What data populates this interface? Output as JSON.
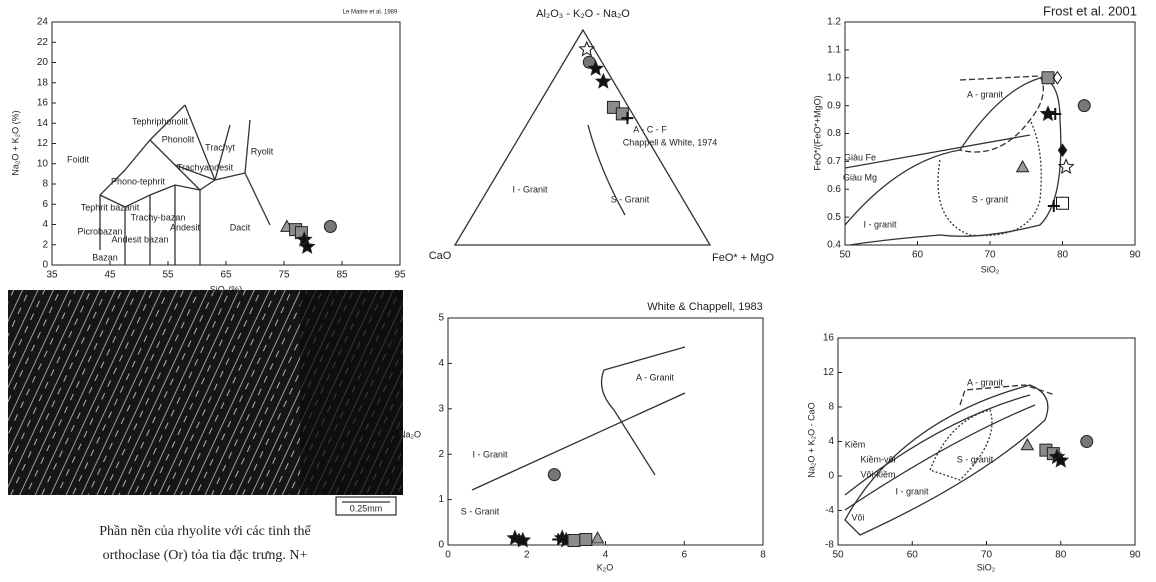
{
  "chart_data": [
    {
      "type": "scatter",
      "source": "Le Maitre et al. 1989",
      "x_label": "SiO₂(%)",
      "y_label": "Na₂O + K₂O (%)",
      "xlim": [
        35,
        95
      ],
      "xticks": [
        35,
        45,
        55,
        65,
        75,
        85,
        95
      ],
      "ylim": [
        0,
        24
      ],
      "yticks": [
        0,
        2,
        4,
        6,
        8,
        10,
        12,
        14,
        16,
        18,
        20,
        22,
        24
      ],
      "annotations": [
        "Phonolit",
        "Tephriphonolit",
        "Trachyt",
        "Ryolit",
        "Foidit",
        "Phono-tephrit",
        "Trachyandesit",
        "Trachy-bazan",
        "Tephrit bazanit",
        "Picrobazan",
        "Bazan",
        "Andesit bazan",
        "Andesit",
        "Dacit"
      ],
      "series": [
        {
          "marker": "triangle",
          "color": "#9a9a9a",
          "x": [
            75.5
          ],
          "values": [
            3.8
          ]
        },
        {
          "marker": "square",
          "color": "#8c8c8c",
          "x": [
            77,
            78
          ],
          "values": [
            3.5,
            3.2
          ]
        },
        {
          "marker": "circle",
          "color": "#777777",
          "x": [
            83
          ],
          "values": [
            3.8
          ]
        },
        {
          "marker": "star",
          "color": "#111111",
          "x": [
            78.5,
            79
          ],
          "values": [
            2.5,
            1.8
          ]
        }
      ]
    },
    {
      "type": "ternary",
      "apex_label": "Al₂O₃ - K₂O - Na₂O",
      "left_label": "CaO",
      "right_label": "FeO* + MgO",
      "annotations": [
        "A - C - F",
        "Chappell & White, 1974",
        "I - Granit",
        "S - Granit"
      ],
      "series": [
        {
          "marker": "star-open",
          "color": "#111111",
          "a": [
            91
          ],
          "c": [
            3
          ],
          "f": [
            6
          ]
        },
        {
          "marker": "circle",
          "color": "#777777",
          "a": [
            85
          ],
          "c": [
            5
          ],
          "f": [
            10
          ]
        },
        {
          "marker": "star",
          "color": "#111111",
          "a": [
            82,
            76
          ],
          "c": [
            4,
            4
          ],
          "f": [
            14,
            20
          ]
        },
        {
          "marker": "square",
          "color": "#8c8c8c",
          "a": [
            64,
            61
          ],
          "c": [
            6,
            4
          ],
          "f": [
            30,
            35
          ]
        },
        {
          "marker": "plus",
          "color": "#111111",
          "a": [
            59
          ],
          "c": [
            3
          ],
          "f": [
            38
          ]
        }
      ]
    },
    {
      "type": "scatter",
      "title": "Frost et al. 2001",
      "x_label": "SiO₂",
      "y_label": "FeO*/(FeO*+MgO)",
      "xlim": [
        50,
        90
      ],
      "xticks": [
        50,
        60,
        70,
        80,
        90
      ],
      "ylim": [
        0.4,
        1.2
      ],
      "yticks": [
        0.4,
        0.5,
        0.6,
        0.7,
        0.8,
        0.9,
        {
          "value": 1,
          "label": "1.0"
        },
        1.1,
        1.2
      ],
      "annotations": [
        "A - granit",
        "Giàu Fe",
        "Giàu Mg",
        "S - granit",
        "I - granit"
      ],
      "series": [
        {
          "marker": "triangle",
          "color": "#9a9a9a",
          "x": [
            74.5
          ],
          "values": [
            0.68
          ]
        },
        {
          "marker": "square",
          "color": "#8c8c8c",
          "x": [
            78
          ],
          "values": [
            1
          ]
        },
        {
          "marker": "square-open",
          "color": "#111111",
          "x": [
            80
          ],
          "values": [
            0.55
          ]
        },
        {
          "marker": "diamond-open",
          "color": "#111111",
          "x": [
            79.3
          ],
          "values": [
            1
          ]
        },
        {
          "marker": "diamond",
          "color": "#111111",
          "x": [
            80
          ],
          "values": [
            0.74
          ]
        },
        {
          "marker": "circle",
          "color": "#777777",
          "x": [
            83
          ],
          "values": [
            0.9
          ]
        },
        {
          "marker": "star",
          "color": "#111111",
          "x": [
            78
          ],
          "values": [
            0.87
          ]
        },
        {
          "marker": "star-open",
          "color": "#111111",
          "x": [
            80.5
          ],
          "values": [
            0.68
          ]
        },
        {
          "marker": "plus",
          "color": "#111111",
          "x": [
            79,
            78.8
          ],
          "values": [
            0.87,
            0.54
          ]
        }
      ]
    },
    {
      "type": "scatter",
      "title": "White & Chappell, 1983",
      "x_label": "K₂O",
      "y_label": "Na₂O",
      "xlim": [
        0,
        8
      ],
      "xticks": [
        0,
        2,
        4,
        6,
        8
      ],
      "ylim": [
        0,
        5
      ],
      "yticks": [
        0,
        1,
        2,
        3,
        4,
        5
      ],
      "annotations": [
        "A - Granit",
        "I - Granit",
        "S - Granit"
      ],
      "series": [
        {
          "marker": "circle",
          "color": "#777777",
          "x": [
            2.7
          ],
          "values": [
            1.55
          ]
        },
        {
          "marker": "star",
          "color": "#111111",
          "x": [
            1.7,
            1.9,
            2.9,
            3
          ],
          "values": [
            0.15,
            0.1,
            0.15,
            0.1
          ]
        },
        {
          "marker": "plus",
          "color": "#111111",
          "x": [
            1.8,
            2.8
          ],
          "values": [
            0.12,
            0.12
          ]
        },
        {
          "marker": "square",
          "color": "#8c8c8c",
          "x": [
            3.2,
            3.5
          ],
          "values": [
            0.1,
            0.12
          ]
        },
        {
          "marker": "triangle",
          "color": "#9a9a9a",
          "x": [
            3.8
          ],
          "values": [
            0.15
          ]
        }
      ]
    },
    {
      "type": "scatter",
      "x_label": "SiO₂",
      "y_label": "Na₂O + K₂O - CaO",
      "xlim": [
        50,
        90
      ],
      "xticks": [
        50,
        60,
        70,
        80,
        90
      ],
      "ylim": [
        -8,
        16
      ],
      "yticks": [
        -8,
        -4,
        0,
        4,
        8,
        12,
        16
      ],
      "annotations": [
        "A - granit",
        "Kiềm",
        "Kiềm-vôi",
        "Vôi-kiềm",
        "S - granit",
        "I - granit",
        "Vôi"
      ],
      "series": [
        {
          "marker": "triangle",
          "color": "#9a9a9a",
          "x": [
            75.5
          ],
          "values": [
            3.6
          ]
        },
        {
          "marker": "square",
          "color": "#8c8c8c",
          "x": [
            78,
            79
          ],
          "values": [
            3,
            2.6
          ]
        },
        {
          "marker": "star",
          "color": "#111111",
          "x": [
            79.5,
            80
          ],
          "values": [
            2.2,
            1.8
          ]
        },
        {
          "marker": "circle",
          "color": "#777777",
          "x": [
            83.5
          ],
          "values": [
            4
          ]
        }
      ]
    }
  ],
  "photo": {
    "scale_label": "0.25mm",
    "caption": [
      "Phần nền của rhyolite với các tinh thể",
      "orthoclase (Or) tỏa tia đặc trưng. N+"
    ]
  }
}
